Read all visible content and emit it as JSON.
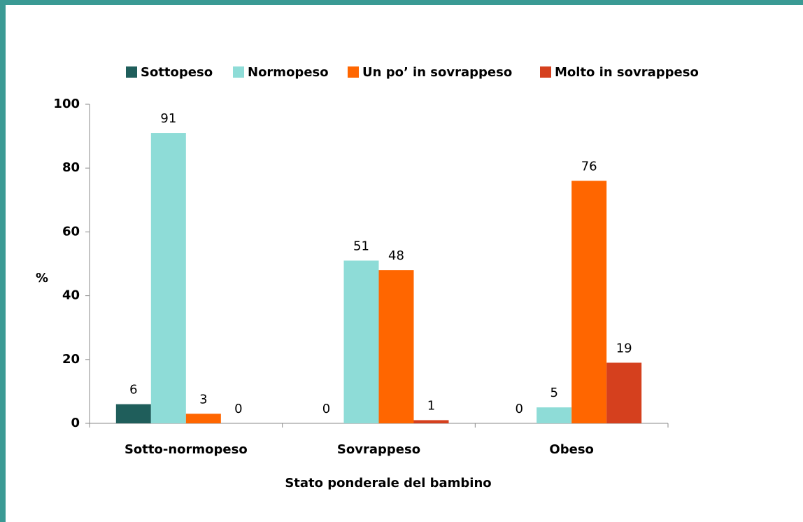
{
  "chart_data": {
    "type": "bar",
    "categories": [
      "Sotto-normopeso",
      "Sovrappeso",
      "Obeso"
    ],
    "series": [
      {
        "name": "Sottopeso",
        "color": "#1f5e5b",
        "values": [
          6,
          0,
          0
        ]
      },
      {
        "name": "Normopeso",
        "color": "#8edcd7",
        "values": [
          91,
          51,
          5
        ]
      },
      {
        "name": "Un po’ in sovrappeso",
        "color": "#ff6600",
        "values": [
          3,
          48,
          76
        ]
      },
      {
        "name": "Molto in sovrappeso",
        "color": "#d5401e",
        "values": [
          0,
          1,
          19
        ]
      }
    ],
    "ylim": [
      0,
      100
    ],
    "yticks": [
      0,
      20,
      40,
      60,
      80,
      100
    ],
    "ylabel": "%",
    "xlabel": "Stato ponderale  del bambino",
    "legend": "top"
  }
}
